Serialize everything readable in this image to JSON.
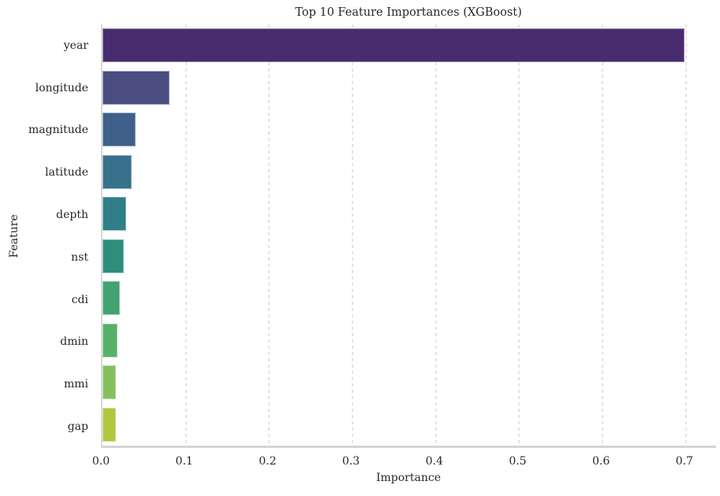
{
  "chart_data": {
    "type": "bar",
    "orientation": "horizontal",
    "title": "Top 10 Feature Importances (XGBoost)",
    "xlabel": "Importance",
    "ylabel": "Feature",
    "categories": [
      "year",
      "longitude",
      "magnitude",
      "latitude",
      "depth",
      "nst",
      "cdi",
      "dmin",
      "mmi",
      "gap"
    ],
    "values": [
      0.698,
      0.08,
      0.04,
      0.035,
      0.028,
      0.026,
      0.021,
      0.018,
      0.016,
      0.016
    ],
    "bar_colors": [
      "#472d6e",
      "#4a4c82",
      "#3f608a",
      "#39708a",
      "#307e87",
      "#2f8d7e",
      "#42a370",
      "#58b169",
      "#85c05f",
      "#b0c83f"
    ],
    "xlim": [
      0,
      0.738
    ],
    "xticks": [
      "0.0",
      "0.1",
      "0.2",
      "0.3",
      "0.4",
      "0.5",
      "0.6",
      "0.7"
    ],
    "xtick_values": [
      0.0,
      0.1,
      0.2,
      0.3,
      0.4,
      0.5,
      0.6,
      0.7
    ],
    "grid": "vertical-dashed",
    "grid_color": "#e3e3e3",
    "spine_color": "#d9d9d9",
    "background": "#ffffff",
    "legend": "none"
  }
}
